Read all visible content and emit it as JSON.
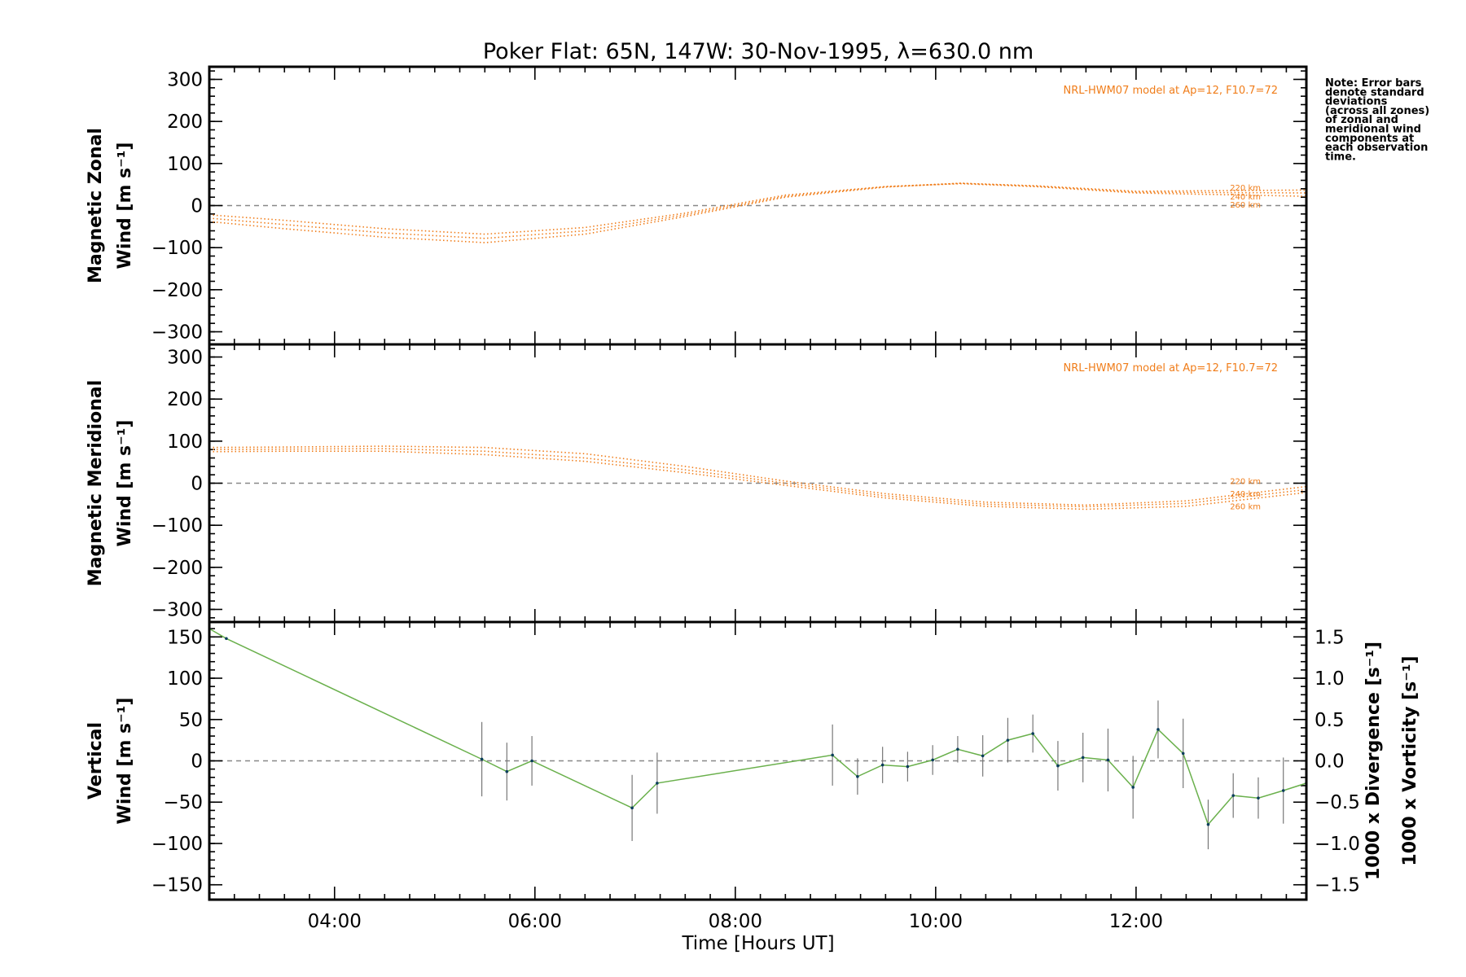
{
  "chart_data": {
    "title": "Poker Flat: 65N, 147W: 30-Nov-1995, λ=630.0 nm",
    "xlabel": "Time [Hours UT]",
    "x_ticks": [
      "04:00",
      "06:00",
      "08:00",
      "10:00",
      "12:00"
    ],
    "x_tick_hours": [
      4,
      6,
      8,
      10,
      12
    ],
    "xlim_hours": [
      2.75,
      13.7
    ],
    "note": [
      "Note: Error bars",
      "denote standard",
      "deviations",
      "(across all zones)",
      "of zonal and",
      "meridional wind",
      "components at",
      "each observation",
      "time."
    ],
    "model_colour": "#f07d1a",
    "panels": [
      {
        "type": "line",
        "ylabel_lines": [
          "Magnetic Zonal",
          "Wind [m s⁻¹]"
        ],
        "ylim": [
          -330,
          330
        ],
        "y_ticks": [
          300,
          200,
          100,
          0,
          -100,
          -200,
          -300
        ],
        "y_tick_labels": [
          "300",
          "200",
          "100",
          "0",
          "−100",
          "−200",
          "−300"
        ],
        "model_label": "NRL-HWM07 model at Ap=12, F10.7=72",
        "altitude_labels": [
          "220 km",
          "240 km",
          "260 km"
        ],
        "series": [
          {
            "x": [
              2.75,
              3.5,
              4.5,
              5.5,
              6.5,
              7.5,
              8.5,
              9.5,
              10.25,
              11,
              12,
              13.7
            ],
            "y": [
              -22,
              -35,
              -55,
              -68,
              -52,
              -18,
              25,
              45,
              52,
              45,
              30,
              22
            ]
          },
          {
            "x": [
              2.75,
              3.5,
              4.5,
              5.5,
              6.5,
              7.5,
              8.5,
              9.5,
              10.25,
              11,
              12,
              13.7
            ],
            "y": [
              -30,
              -45,
              -65,
              -78,
              -60,
              -22,
              22,
              45,
              53,
              46,
              32,
              30
            ]
          },
          {
            "x": [
              2.75,
              3.5,
              4.5,
              5.5,
              6.5,
              7.5,
              8.5,
              9.5,
              10.25,
              11,
              12,
              13.7
            ],
            "y": [
              -38,
              -55,
              -75,
              -88,
              -68,
              -26,
              20,
              44,
              53,
              47,
              34,
              37
            ]
          }
        ]
      },
      {
        "type": "line",
        "ylabel_lines": [
          "Magnetic Meridional",
          "Wind [m s⁻¹]"
        ],
        "ylim": [
          -330,
          330
        ],
        "y_ticks": [
          300,
          200,
          100,
          0,
          -100,
          -200,
          -300
        ],
        "y_tick_labels": [
          "300",
          "200",
          "100",
          "0",
          "−100",
          "−200",
          "−300"
        ],
        "model_label": "NRL-HWM07 model at Ap=12, F10.7=72",
        "altitude_labels": [
          "220 km",
          "240 km",
          "260 km"
        ],
        "series": [
          {
            "x": [
              2.75,
              3.5,
              4.5,
              5.5,
              6.5,
              7.5,
              8.5,
              9.5,
              10.5,
              11.5,
              12.5,
              13.7
            ],
            "y": [
              85,
              86,
              88,
              85,
              70,
              40,
              5,
              -25,
              -45,
              -52,
              -42,
              -8
            ]
          },
          {
            "x": [
              2.75,
              3.5,
              4.5,
              5.5,
              6.5,
              7.5,
              8.5,
              9.5,
              10.5,
              11.5,
              12.5,
              13.7
            ],
            "y": [
              80,
              81,
              82,
              76,
              60,
              32,
              0,
              -30,
              -50,
              -56,
              -48,
              -15
            ]
          },
          {
            "x": [
              2.75,
              3.5,
              4.5,
              5.5,
              6.5,
              7.5,
              8.5,
              9.5,
              10.5,
              11.5,
              12.5,
              13.7
            ],
            "y": [
              75,
              76,
              76,
              68,
              52,
              25,
              -5,
              -35,
              -55,
              -62,
              -55,
              -22
            ]
          }
        ]
      },
      {
        "type": "line",
        "ylabel_lines": [
          "Vertical",
          "Wind [m s⁻¹]"
        ],
        "ylabel_colour": "#6ab04c",
        "ylim": [
          -168,
          168
        ],
        "y_ticks": [
          150,
          100,
          50,
          0,
          -50,
          -100,
          -150
        ],
        "y_tick_labels": [
          "150",
          "100",
          "50",
          "0",
          "−50",
          "−100",
          "−150"
        ],
        "y2_ticks": [
          1.5,
          1.0,
          0.5,
          0.0,
          -0.5,
          -1.0,
          -1.5
        ],
        "y2_tick_labels": [
          "1.5",
          "1.0",
          "0.5",
          "0.0",
          "−0.5",
          "−1.0",
          "−1.5"
        ],
        "y2_label_divergence": "1000 x Divergence [s⁻¹]",
        "y2_label_vorticity": "1000 x Vorticity [s⁻¹]",
        "divergence_colour": "#4fa3d8",
        "vorticity_colour": "#f05a8c",
        "line_colour": "#6ab04c",
        "series": [
          {
            "x": [
              2.75,
              2.92,
              5.47,
              5.72,
              5.97,
              6.97,
              7.22,
              8.97,
              9.22,
              9.47,
              9.72,
              9.97,
              10.22,
              10.47,
              10.72,
              10.97,
              11.22,
              11.47,
              11.72,
              11.97,
              12.22,
              12.47,
              12.72,
              12.97,
              13.22,
              13.47,
              13.7
            ],
            "y": [
              160,
              148,
              2,
              -13,
              0,
              -57,
              -27,
              7,
              -19,
              -5,
              -7,
              1,
              14,
              6,
              25,
              33,
              -6,
              4,
              1,
              -32,
              38,
              9,
              -77,
              -42,
              -45,
              -36,
              -27
            ],
            "err": [
              0,
              0,
              45,
              35,
              30,
              40,
              37,
              37,
              22,
              22,
              18,
              18,
              16,
              25,
              27,
              23,
              30,
              30,
              38,
              38,
              35,
              42,
              30,
              27,
              25,
              40,
              0
            ]
          }
        ]
      }
    ]
  }
}
